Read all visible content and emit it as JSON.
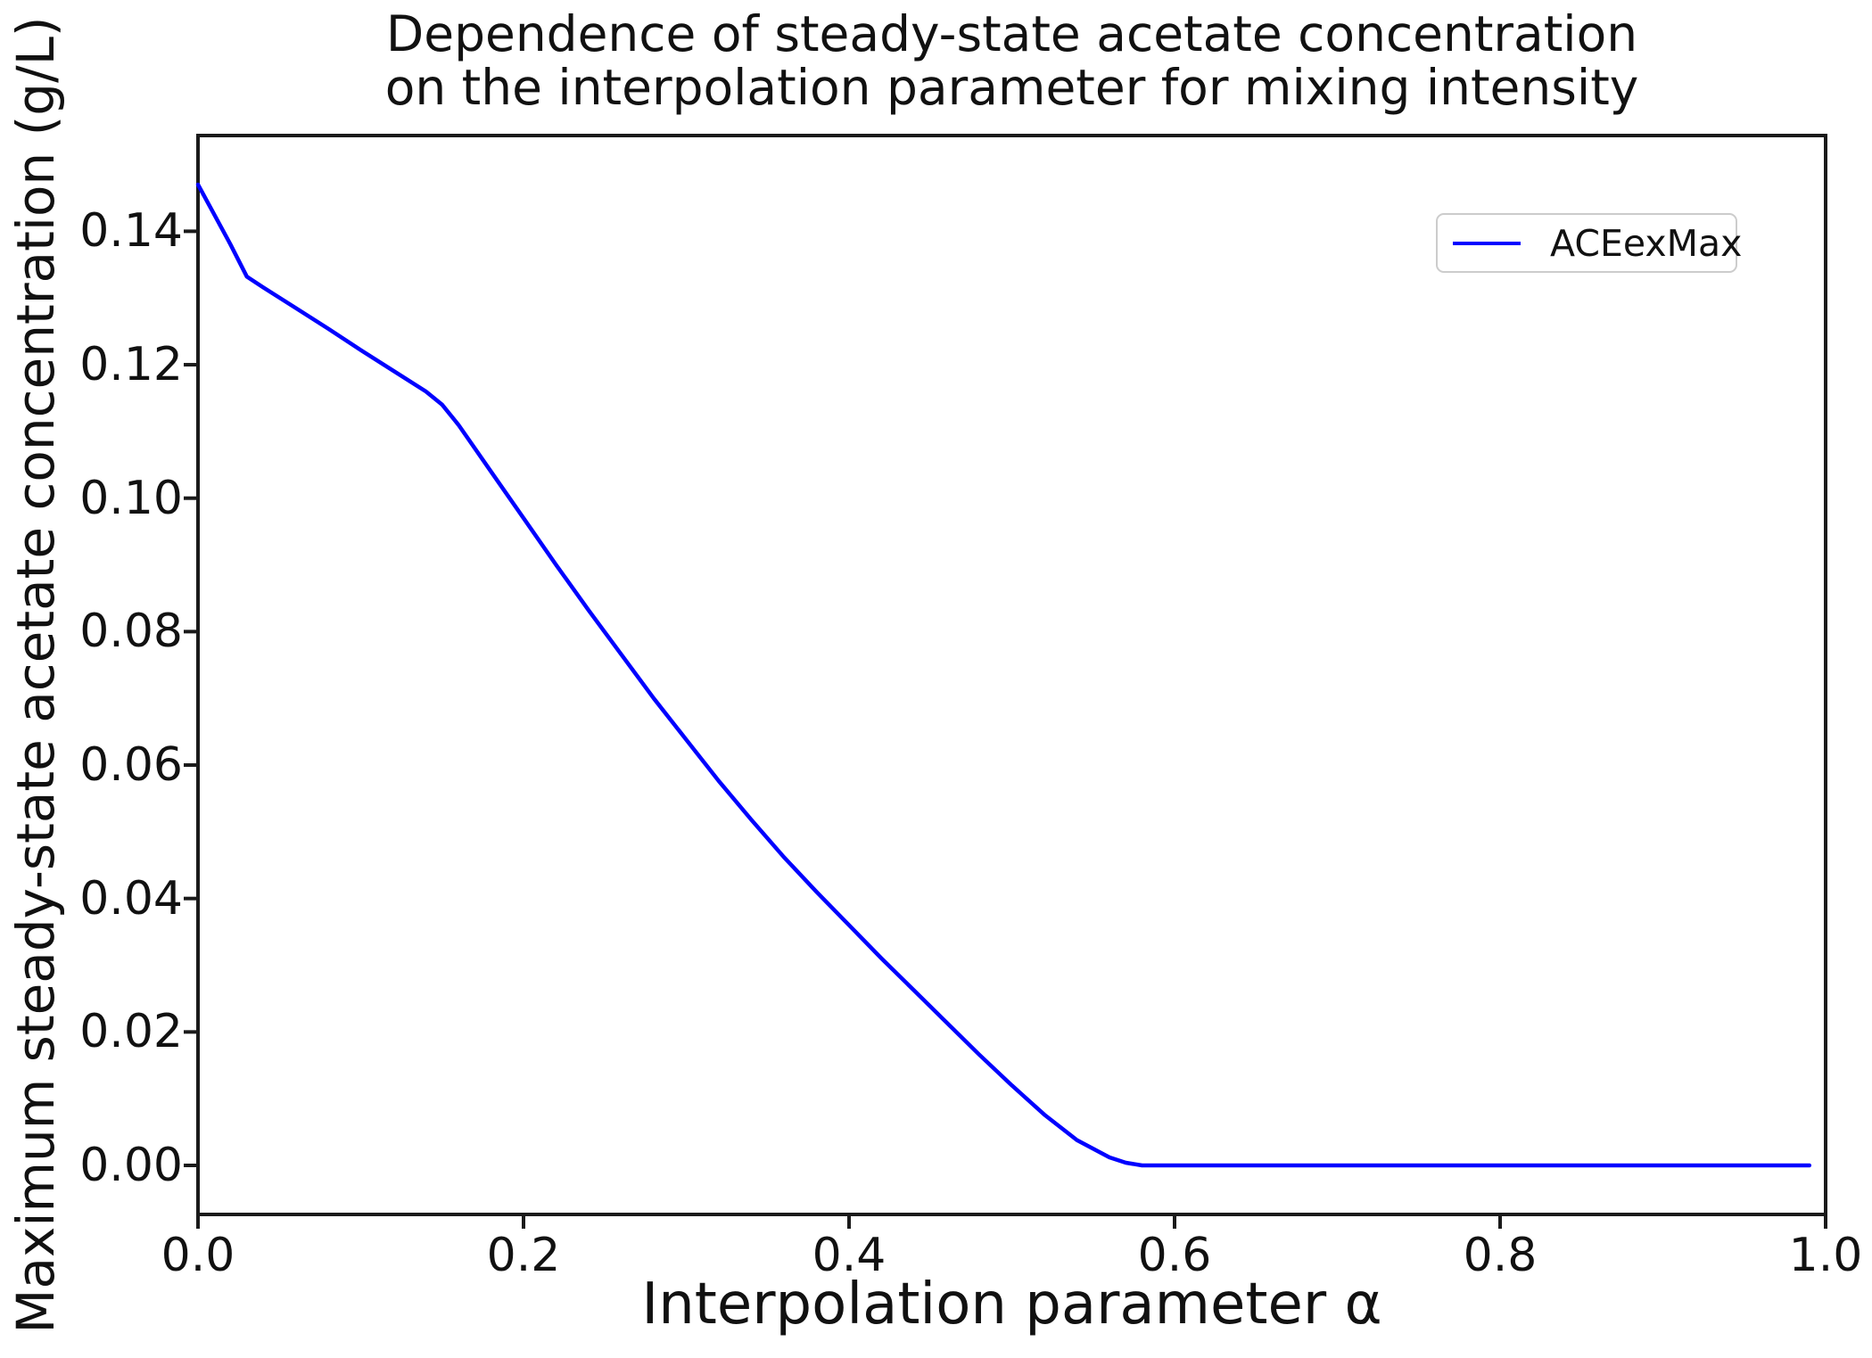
{
  "title": {
    "line1": "Dependence of steady-state acetate concentration",
    "line2": "on the interpolation parameter for mixing intensity"
  },
  "axes": {
    "x_label": "Interpolation parameter α",
    "y_label": "Maximum steady-state acetate concentration (g/L)",
    "x_tick_labels": [
      "0.0",
      "0.2",
      "0.4",
      "0.6",
      "0.8",
      "1.0"
    ],
    "y_tick_labels": [
      "0.00",
      "0.02",
      "0.04",
      "0.06",
      "0.08",
      "0.10",
      "0.12",
      "0.14"
    ]
  },
  "legend": {
    "entries": [
      {
        "label": "ACEexMax",
        "color": "#0000ff"
      }
    ],
    "position": "upper right"
  },
  "colors": {
    "line": "#0000ff",
    "text": "#111111",
    "spine": "#1a1a1a",
    "legend_border": "#cccccc",
    "background": "#ffffff"
  },
  "chart_data": {
    "type": "line",
    "title": "Dependence of steady-state acetate concentration on the interpolation parameter for mixing intensity",
    "xlabel": "Interpolation parameter α",
    "ylabel": "Maximum steady-state acetate concentration (g/L)",
    "grid": false,
    "legend_position": "upper right",
    "xlim": [
      0.0,
      1.0
    ],
    "ylim": [
      -0.00735,
      0.15435
    ],
    "x_ticks": [
      0.0,
      0.2,
      0.4,
      0.6,
      0.8,
      1.0
    ],
    "y_ticks": [
      0.0,
      0.02,
      0.04,
      0.06,
      0.08,
      0.1,
      0.12,
      0.14
    ],
    "series": [
      {
        "name": "ACEexMax",
        "color": "#0000ff",
        "x": [
          0.0,
          0.01,
          0.02,
          0.03,
          0.04,
          0.06,
          0.08,
          0.1,
          0.12,
          0.14,
          0.15,
          0.16,
          0.18,
          0.2,
          0.22,
          0.24,
          0.26,
          0.28,
          0.3,
          0.32,
          0.34,
          0.36,
          0.38,
          0.4,
          0.42,
          0.44,
          0.46,
          0.48,
          0.5,
          0.52,
          0.54,
          0.56,
          0.57,
          0.58,
          0.6,
          0.65,
          0.7,
          0.75,
          0.8,
          0.85,
          0.9,
          0.95,
          0.99
        ],
        "y": [
          0.147,
          0.1425,
          0.138,
          0.1332,
          0.1316,
          0.1285,
          0.1254,
          0.1222,
          0.1191,
          0.116,
          0.114,
          0.111,
          0.104,
          0.097,
          0.09,
          0.0832,
          0.0766,
          0.07,
          0.0638,
          0.0576,
          0.0518,
          0.0462,
          0.041,
          0.036,
          0.031,
          0.0262,
          0.0214,
          0.0166,
          0.012,
          0.0076,
          0.0038,
          0.0012,
          0.0004,
          0.0,
          0.0,
          0.0,
          0.0,
          0.0,
          0.0,
          0.0,
          0.0,
          0.0,
          0.0
        ]
      }
    ]
  }
}
